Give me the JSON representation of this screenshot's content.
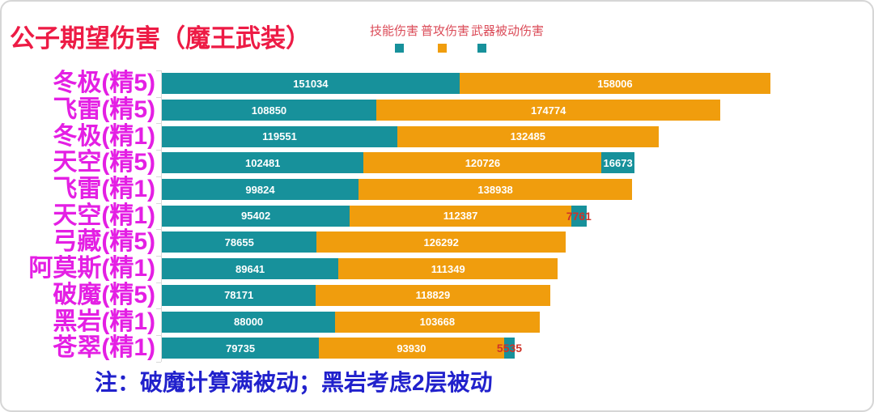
{
  "title": "公子期望伤害（魔王武装）",
  "note": "注：破魔计算满被动；黑岩考虑2层被动",
  "legend": [
    {
      "label": "技能伤害",
      "color": "#17919B"
    },
    {
      "label": "普攻伤害",
      "color": "#F09D0D"
    },
    {
      "label": "武器被动伤害",
      "color": "#17919B"
    }
  ],
  "colors": {
    "title_red": "#ED1B45",
    "legend_red": "#DB4B58",
    "label_magenta": "#E41FE4",
    "note_blue": "#2121CC",
    "axis_gray": "#D9D9D9",
    "value_label": "#FFFFFF",
    "small_value_label": "#CF3228",
    "teal": "#17919B",
    "orange": "#F09D0D"
  },
  "chart_data": {
    "type": "bar",
    "orientation": "horizontal",
    "stacked": true,
    "title": "公子期望伤害（魔王武装）",
    "annotation": "注：破魔计算满被动；黑岩考虑2层被动",
    "legend_position": "top-right",
    "grid": false,
    "xlim": [
      0,
      350000
    ],
    "categories": [
      "冬极(精5)",
      "飞雷(精5)",
      "冬极(精1)",
      "天空(精5)",
      "飞雷(精1)",
      "天空(精1)",
      "弓藏(精5)",
      "阿莫斯(精1)",
      "破魔(精5)",
      "黑岩(精1)",
      "苍翠(精1)"
    ],
    "series": [
      {
        "name": "技能伤害",
        "color": "#17919B",
        "values": [
          151034,
          108850,
          119551,
          102481,
          99824,
          95402,
          78655,
          89641,
          78171,
          88000,
          79735
        ]
      },
      {
        "name": "普攻伤害",
        "color": "#F09D0D",
        "values": [
          158006,
          174774,
          132485,
          120726,
          138938,
          112387,
          126292,
          111349,
          118829,
          103668,
          93930
        ]
      },
      {
        "name": "武器被动伤害",
        "color": "#17919B",
        "values": [
          0,
          0,
          0,
          16673,
          0,
          7761,
          0,
          0,
          0,
          0,
          5535
        ]
      }
    ]
  }
}
